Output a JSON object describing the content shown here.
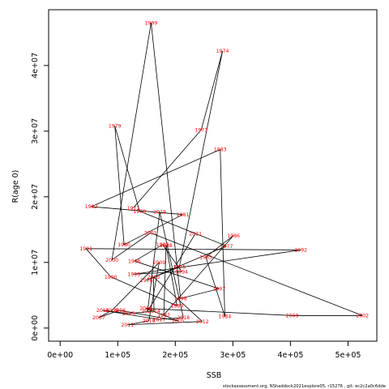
{
  "chart_data": {
    "type": "line",
    "xlabel": "SSB",
    "ylabel": "R(age 0)",
    "xlim": [
      -20000,
      550000
    ],
    "ylim": [
      -2000000,
      48500000
    ],
    "x_ticks": [
      {
        "value": 0,
        "label": "0e+00"
      },
      {
        "value": 100000,
        "label": "1e+05"
      },
      {
        "value": 200000,
        "label": "2e+05"
      },
      {
        "value": 300000,
        "label": "3e+05"
      },
      {
        "value": 400000,
        "label": "4e+05"
      },
      {
        "value": 500000,
        "label": "5e+05"
      }
    ],
    "y_ticks": [
      {
        "value": 0,
        "label": "0e+00"
      },
      {
        "value": 10000000,
        "label": "1e+07"
      },
      {
        "value": 20000000,
        "label": "2e+07"
      },
      {
        "value": 30000000,
        "label": "3e+07"
      },
      {
        "value": 40000000,
        "label": "4e+07"
      }
    ],
    "point_color": "#ff0000",
    "line_color": "#000000",
    "points": [
      {
        "year": "1972",
        "x": 127000,
        "y": 18300000
      },
      {
        "year": "1973",
        "x": 245000,
        "y": 30200000
      },
      {
        "year": "1974",
        "x": 282000,
        "y": 42200000
      },
      {
        "year": "1975",
        "x": 207000,
        "y": 9300000
      },
      {
        "year": "1976",
        "x": 150000,
        "y": 7300000
      },
      {
        "year": "1977",
        "x": 289000,
        "y": 12500000
      },
      {
        "year": "1978",
        "x": 138000,
        "y": 17800000
      },
      {
        "year": "1979",
        "x": 95000,
        "y": 30800000
      },
      {
        "year": "1980",
        "x": 111000,
        "y": 12700000
      },
      {
        "year": "1981",
        "x": 213000,
        "y": 17300000
      },
      {
        "year": "1982",
        "x": 54000,
        "y": 18500000
      },
      {
        "year": "1983",
        "x": 278000,
        "y": 27200000
      },
      {
        "year": "1984",
        "x": 286000,
        "y": 1800000
      },
      {
        "year": "1985",
        "x": 253000,
        "y": 10800000
      },
      {
        "year": "1986",
        "x": 301000,
        "y": 14100000
      },
      {
        "year": "1987",
        "x": 180000,
        "y": 2000000
      },
      {
        "year": "1988",
        "x": 184000,
        "y": 12600000
      },
      {
        "year": "1989",
        "x": 203000,
        "y": 3400000
      },
      {
        "year": "1990",
        "x": 88000,
        "y": 7800000
      },
      {
        "year": "1991",
        "x": 45000,
        "y": 12100000
      },
      {
        "year": "1992",
        "x": 418000,
        "y": 11900000
      },
      {
        "year": "1993",
        "x": 128000,
        "y": 8200000
      },
      {
        "year": "1994",
        "x": 211000,
        "y": 8600000
      },
      {
        "year": "1995",
        "x": 178000,
        "y": 12700000
      },
      {
        "year": "1996",
        "x": 129000,
        "y": 10200000
      },
      {
        "year": "1997",
        "x": 276000,
        "y": 6000000
      },
      {
        "year": "1998",
        "x": 209000,
        "y": 4500000
      },
      {
        "year": "1999",
        "x": 158000,
        "y": 46500000
      },
      {
        "year": "2000",
        "x": 90000,
        "y": 10400000
      },
      {
        "year": "2001",
        "x": 157000,
        "y": 14500000
      },
      {
        "year": "2002",
        "x": 525000,
        "y": 1900000
      },
      {
        "year": "2003",
        "x": 403000,
        "y": 1900000
      },
      {
        "year": "2004",
        "x": 149000,
        "y": 3000000
      },
      {
        "year": "2005",
        "x": 205000,
        "y": 1100000
      },
      {
        "year": "2006",
        "x": 103000,
        "y": 2700000
      },
      {
        "year": "2007",
        "x": 67000,
        "y": 1600000
      },
      {
        "year": "2008",
        "x": 90000,
        "y": 2700000
      },
      {
        "year": "2009",
        "x": 172000,
        "y": 10000000
      },
      {
        "year": "2010",
        "x": 154000,
        "y": 1100000
      },
      {
        "year": "2011",
        "x": 117000,
        "y": 500000
      },
      {
        "year": "2012",
        "x": 247000,
        "y": 1000000
      },
      {
        "year": "2013",
        "x": 162000,
        "y": 7800000
      },
      {
        "year": "2014",
        "x": 163000,
        "y": 2600000
      },
      {
        "year": "2015",
        "x": 119000,
        "y": 2200000
      },
      {
        "year": "2016",
        "x": 74000,
        "y": 2700000
      },
      {
        "year": "2017",
        "x": 172000,
        "y": 1300000
      },
      {
        "year": "2018",
        "x": 214000,
        "y": 1600000
      },
      {
        "year": "2019",
        "x": 173000,
        "y": 17700000
      },
      {
        "year": "2020",
        "x": 152000,
        "y": 2600000
      },
      {
        "year": "2021",
        "x": 235000,
        "y": 14400000
      }
    ]
  },
  "footer": "stockassessment.org, NShaddock2021explore05, r15276 ,  git: ec2c2a0c6dde"
}
